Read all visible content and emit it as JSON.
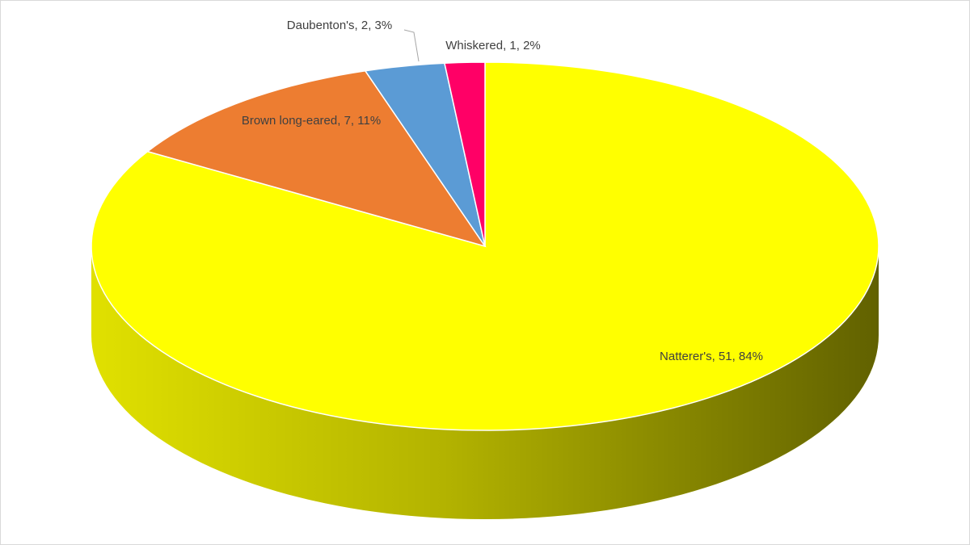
{
  "chart_data": {
    "type": "pie3d",
    "values": [
      51,
      7,
      2,
      1
    ],
    "value_labels": [
      "Natterer's, 51, 84%",
      "Brown long-eared, 7, 11%",
      "Daubenton's, 2, 3%",
      "Whiskered, 1, 2%"
    ],
    "colors": [
      "#ffff00",
      "#ed7d31",
      "#5b9bd5",
      "#ff0066"
    ]
  }
}
